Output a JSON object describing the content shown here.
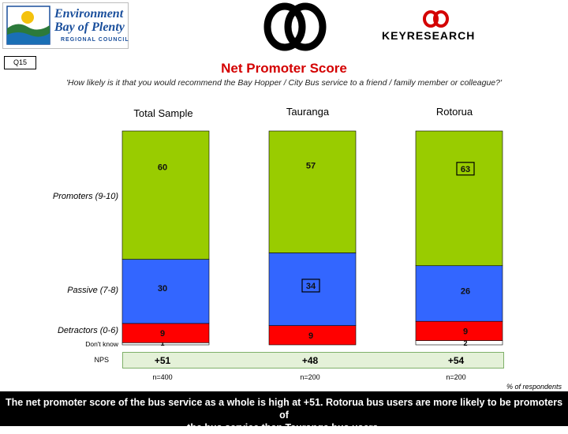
{
  "header": {
    "logo": {
      "line1": "Environment",
      "line2": "Bay of Plenty",
      "line3": "REGIONAL COUNCIL"
    },
    "brand": "KEYRESEARCH",
    "q_badge": "Q15",
    "title": "Net Promoter Score",
    "question": "'How likely is it that you would recommend the Bay Hopper / City Bus service to a friend / family member or colleague?'"
  },
  "chart_data": {
    "type": "bar",
    "stacked": true,
    "categories": [
      "Total Sample",
      "Tauranga",
      "Rotorua"
    ],
    "series": [
      {
        "name": "Don't know",
        "values": [
          1,
          0,
          2
        ],
        "color": "#ffffff",
        "labels": [
          "1",
          "",
          "2"
        ]
      },
      {
        "name": "Detractors (0-6)",
        "values": [
          9,
          9,
          9
        ],
        "color": "#ff0000",
        "labels": [
          "9",
          "9",
          "9"
        ]
      },
      {
        "name": "Passive (7-8)",
        "values": [
          30,
          34,
          26
        ],
        "color": "#3366ff",
        "labels": [
          "30",
          "34",
          "26"
        ]
      },
      {
        "name": "Promoters (9-10)",
        "values": [
          60,
          57,
          63
        ],
        "color": "#99cc00",
        "labels": [
          "60",
          "57",
          "63"
        ]
      }
    ],
    "ylim": [
      0,
      100
    ],
    "nps": {
      "label": "NPS",
      "values": [
        "+51",
        "+48",
        "+54"
      ]
    },
    "sample_sizes": [
      "n=400",
      "n=200",
      "n=200"
    ],
    "unit_note": "% of respondents",
    "boxed_labels": [
      [],
      [
        "Passive (7-8)"
      ],
      [
        "Promoters (9-10)"
      ]
    ]
  },
  "footer": {
    "line1": "The net promoter score of the bus service as a whole is high at +51. Rotorua bus users are more likely to be promoters of",
    "line2": "the bus service than Tauranga bus users."
  }
}
